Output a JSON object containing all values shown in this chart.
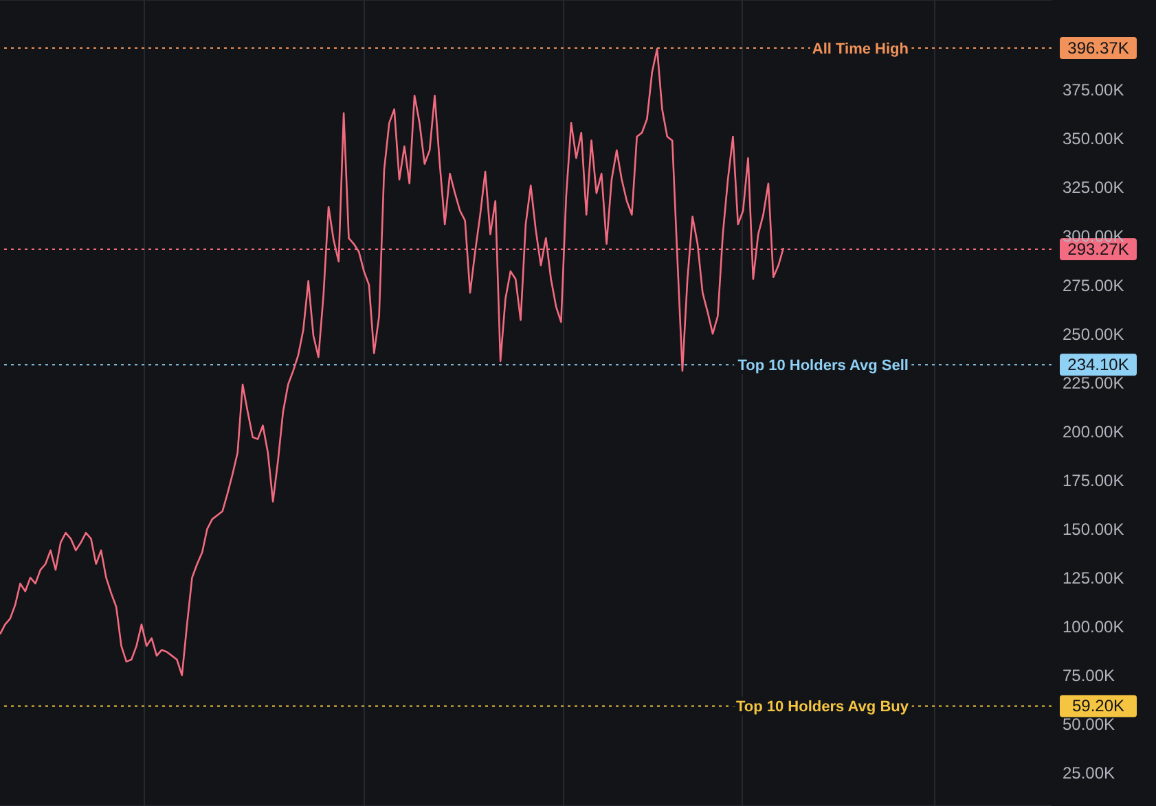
{
  "chart_data": {
    "type": "line",
    "categories": [
      null,
      null,
      null,
      null,
      null,
      null,
      null,
      null,
      null,
      null,
      null,
      null,
      null,
      null,
      null,
      null,
      null,
      null,
      null,
      null,
      null,
      null,
      null,
      null,
      null,
      null,
      null,
      null,
      null,
      null,
      null,
      null,
      null,
      null,
      null,
      null,
      null,
      null,
      null,
      null,
      null,
      null,
      null,
      null,
      null,
      null,
      null,
      null,
      null,
      null,
      null,
      null,
      null,
      null,
      null,
      null,
      null,
      null,
      null,
      null,
      null,
      null,
      null,
      null,
      null,
      null,
      null,
      null,
      null,
      null,
      null,
      null,
      null,
      null,
      null,
      null,
      null,
      null,
      null,
      null,
      null,
      null,
      null,
      null,
      null,
      null,
      null,
      null,
      null,
      null,
      null,
      null,
      null,
      null,
      null,
      null,
      null,
      null,
      null,
      null,
      null,
      null,
      null,
      null,
      null,
      null,
      null,
      null,
      null,
      null,
      null,
      null,
      null,
      null,
      null,
      null,
      null,
      null,
      null,
      null,
      null,
      null,
      null,
      null,
      null,
      null,
      null,
      null,
      null,
      null,
      null,
      null,
      null,
      null,
      null,
      null,
      null,
      null,
      null,
      null,
      null,
      null,
      null,
      null,
      null,
      null,
      null,
      null,
      null,
      null,
      null,
      null,
      null,
      null,
      null,
      null
    ],
    "series": [
      {
        "color": "#f26b80",
        "values": [
          96,
          101,
          104,
          111,
          122,
          118,
          125,
          122,
          129,
          132,
          139,
          129,
          143,
          148,
          145,
          139,
          143,
          148,
          145,
          132,
          139,
          125,
          117,
          110,
          90,
          82,
          83,
          90,
          101,
          90,
          94,
          85,
          88,
          87,
          85,
          83,
          75,
          101,
          125,
          132,
          138,
          150,
          155,
          157,
          159,
          168,
          178,
          189,
          224,
          210,
          197,
          196,
          203,
          189,
          164,
          185,
          210,
          224,
          231,
          239,
          252,
          277,
          249,
          238,
          270,
          315,
          298,
          287,
          363,
          299,
          296,
          292,
          282,
          275,
          240,
          259,
          334,
          358,
          365,
          329,
          346,
          327,
          372,
          358,
          337,
          344,
          372,
          337,
          306,
          332,
          322,
          313,
          308,
          271,
          292,
          311,
          333,
          301,
          318,
          236,
          268,
          282,
          278,
          257,
          306,
          326,
          303,
          285,
          299,
          278,
          264,
          256,
          320,
          358,
          340,
          353,
          311,
          349,
          322,
          332,
          296,
          329,
          344,
          329,
          318,
          311,
          351,
          353,
          360,
          384,
          396,
          365,
          351,
          349,
          289,
          231,
          278,
          310,
          296,
          271,
          261,
          250,
          259,
          301,
          329,
          351,
          306,
          313,
          340,
          278,
          301,
          311,
          327,
          279,
          285,
          294
        ]
      }
    ],
    "ylim": [
      8,
      421
    ],
    "yticks": [
      {
        "value": 25,
        "label": "25.00K"
      },
      {
        "value": 50,
        "label": "50.00K"
      },
      {
        "value": 75,
        "label": "75.00K"
      },
      {
        "value": 100,
        "label": "100.00K"
      },
      {
        "value": 125,
        "label": "125.00K"
      },
      {
        "value": 150,
        "label": "150.00K"
      },
      {
        "value": 175,
        "label": "175.00K"
      },
      {
        "value": 200,
        "label": "200.00K"
      },
      {
        "value": 225,
        "label": "225.00K"
      },
      {
        "value": 250,
        "label": "250.00K"
      },
      {
        "value": 275,
        "label": "275.00K"
      },
      {
        "value": 300,
        "label": "300.00K"
      },
      {
        "value": 325,
        "label": "325.00K"
      },
      {
        "value": 350,
        "label": "350.00K"
      },
      {
        "value": 375,
        "label": "375.00K"
      }
    ],
    "grid": true,
    "ref_lines": [
      {
        "axis": "y",
        "value": 396.37,
        "label": "All Time High",
        "color": "#f0925a",
        "line_style": "dotted"
      },
      {
        "axis": "y",
        "value": 293.27,
        "label": null,
        "color": "#f26b80",
        "line_style": "dotted"
      },
      {
        "axis": "y",
        "value": 234.1,
        "label": "Top 10 Holders Avg Sell",
        "color": "#8fd0f5",
        "line_style": "dotted"
      },
      {
        "axis": "y",
        "value": 59.2,
        "label": "Top 10 Holders Avg Buy",
        "color": "#f5c542",
        "line_style": "dotted"
      }
    ],
    "annotations": [
      "396.37K",
      "293.27K",
      "234.10K",
      "59.20K"
    ]
  }
}
